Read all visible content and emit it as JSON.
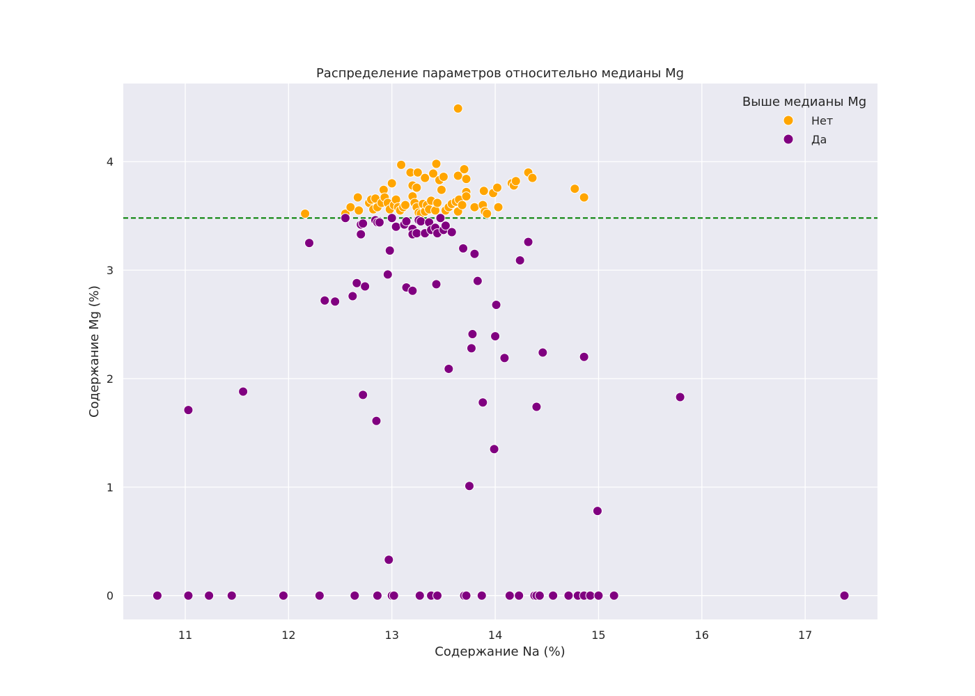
{
  "chart_data": {
    "type": "scatter",
    "title": "Распределение параметров относительно медианы Mg",
    "xlabel": "Содержание Na (%)",
    "ylabel": "Содержание Mg (%)",
    "xlim": [
      10.4,
      17.7
    ],
    "ylim": [
      -0.22,
      4.72
    ],
    "xticks": [
      11,
      12,
      13,
      14,
      15,
      16,
      17
    ],
    "yticks": [
      0,
      1,
      2,
      3,
      4
    ],
    "grid": true,
    "median_line": {
      "y": 3.48,
      "color": "#008000",
      "style": "dashed"
    },
    "legend": {
      "title": "Выше медианы Mg",
      "placement": "top-right",
      "entries": [
        {
          "label": "Нет",
          "color": "#FFA500"
        },
        {
          "label": "Да",
          "color": "#800080"
        }
      ]
    },
    "series": [
      {
        "name": "Нет",
        "color": "#FFA500",
        "points": [
          [
            12.16,
            3.52
          ],
          [
            12.55,
            3.52
          ],
          [
            12.6,
            3.58
          ],
          [
            12.67,
            3.67
          ],
          [
            12.68,
            3.55
          ],
          [
            12.78,
            3.62
          ],
          [
            12.8,
            3.65
          ],
          [
            12.82,
            3.56
          ],
          [
            12.84,
            3.66
          ],
          [
            12.86,
            3.58
          ],
          [
            12.9,
            3.62
          ],
          [
            12.92,
            3.74
          ],
          [
            12.93,
            3.67
          ],
          [
            12.96,
            3.62
          ],
          [
            12.98,
            3.56
          ],
          [
            13.0,
            3.8
          ],
          [
            13.02,
            3.6
          ],
          [
            13.04,
            3.65
          ],
          [
            13.06,
            3.58
          ],
          [
            13.08,
            3.55
          ],
          [
            13.09,
            3.97
          ],
          [
            13.11,
            3.58
          ],
          [
            13.13,
            3.6
          ],
          [
            13.18,
            3.9
          ],
          [
            13.2,
            3.78
          ],
          [
            13.2,
            3.68
          ],
          [
            13.22,
            3.62
          ],
          [
            13.24,
            3.58
          ],
          [
            13.25,
            3.9
          ],
          [
            13.24,
            3.76
          ],
          [
            13.26,
            3.53
          ],
          [
            13.28,
            3.52
          ],
          [
            13.3,
            3.61
          ],
          [
            13.32,
            3.85
          ],
          [
            13.32,
            3.54
          ],
          [
            13.34,
            3.6
          ],
          [
            13.36,
            3.56
          ],
          [
            13.38,
            3.64
          ],
          [
            13.4,
            3.89
          ],
          [
            13.42,
            3.55
          ],
          [
            13.43,
            3.98
          ],
          [
            13.44,
            3.62
          ],
          [
            13.46,
            3.83
          ],
          [
            13.48,
            3.74
          ],
          [
            13.5,
            3.86
          ],
          [
            13.52,
            3.55
          ],
          [
            13.55,
            3.58
          ],
          [
            13.58,
            3.61
          ],
          [
            13.62,
            3.63
          ],
          [
            13.64,
            3.54
          ],
          [
            13.65,
            3.65
          ],
          [
            13.64,
            3.87
          ],
          [
            13.64,
            4.49
          ],
          [
            13.68,
            3.6
          ],
          [
            13.7,
            3.93
          ],
          [
            13.72,
            3.84
          ],
          [
            13.72,
            3.72
          ],
          [
            13.72,
            3.68
          ],
          [
            13.8,
            3.58
          ],
          [
            13.88,
            3.6
          ],
          [
            13.89,
            3.73
          ],
          [
            13.9,
            3.54
          ],
          [
            13.92,
            3.52
          ],
          [
            13.98,
            3.71
          ],
          [
            14.02,
            3.76
          ],
          [
            14.03,
            3.58
          ],
          [
            14.16,
            3.8
          ],
          [
            14.18,
            3.78
          ],
          [
            14.2,
            3.82
          ],
          [
            14.32,
            3.9
          ],
          [
            14.36,
            3.85
          ],
          [
            14.77,
            3.75
          ],
          [
            14.86,
            3.67
          ]
        ]
      },
      {
        "name": "Да",
        "color": "#800080",
        "points": [
          [
            12.55,
            3.48
          ],
          [
            12.7,
            3.42
          ],
          [
            12.7,
            3.33
          ],
          [
            12.72,
            3.43
          ],
          [
            12.84,
            3.46
          ],
          [
            12.86,
            3.44
          ],
          [
            12.88,
            3.44
          ],
          [
            13.0,
            3.48
          ],
          [
            13.04,
            3.4
          ],
          [
            13.12,
            3.42
          ],
          [
            13.14,
            3.45
          ],
          [
            13.2,
            3.38
          ],
          [
            13.2,
            3.33
          ],
          [
            13.24,
            3.34
          ],
          [
            13.26,
            3.46
          ],
          [
            13.28,
            3.45
          ],
          [
            13.32,
            3.34
          ],
          [
            13.36,
            3.44
          ],
          [
            13.38,
            3.37
          ],
          [
            13.42,
            3.39
          ],
          [
            13.44,
            3.34
          ],
          [
            13.47,
            3.48
          ],
          [
            13.5,
            3.37
          ],
          [
            13.52,
            3.41
          ],
          [
            13.58,
            3.35
          ],
          [
            12.2,
            3.25
          ],
          [
            12.98,
            3.18
          ],
          [
            13.69,
            3.2
          ],
          [
            13.8,
            3.15
          ],
          [
            14.24,
            3.09
          ],
          [
            14.32,
            3.26
          ],
          [
            12.96,
            2.96
          ],
          [
            12.66,
            2.88
          ],
          [
            12.74,
            2.85
          ],
          [
            13.14,
            2.84
          ],
          [
            13.2,
            2.81
          ],
          [
            13.43,
            2.87
          ],
          [
            13.83,
            2.9
          ],
          [
            12.35,
            2.72
          ],
          [
            12.45,
            2.71
          ],
          [
            12.62,
            2.76
          ],
          [
            14.01,
            2.68
          ],
          [
            13.78,
            2.41
          ],
          [
            14.0,
            2.39
          ],
          [
            13.77,
            2.28
          ],
          [
            14.46,
            2.24
          ],
          [
            14.09,
            2.19
          ],
          [
            14.86,
            2.2
          ],
          [
            13.55,
            2.09
          ],
          [
            11.56,
            1.88
          ],
          [
            11.03,
            1.71
          ],
          [
            12.72,
            1.85
          ],
          [
            13.88,
            1.78
          ],
          [
            14.4,
            1.74
          ],
          [
            15.79,
            1.83
          ],
          [
            12.85,
            1.61
          ],
          [
            13.99,
            1.35
          ],
          [
            13.75,
            1.01
          ],
          [
            14.99,
            0.78
          ],
          [
            12.97,
            0.33
          ],
          [
            10.73,
            0
          ],
          [
            11.03,
            0
          ],
          [
            11.23,
            0
          ],
          [
            11.45,
            0
          ],
          [
            11.95,
            0
          ],
          [
            12.3,
            0
          ],
          [
            12.64,
            0
          ],
          [
            12.86,
            0
          ],
          [
            13.0,
            0
          ],
          [
            13.02,
            0
          ],
          [
            13.27,
            0
          ],
          [
            13.38,
            0
          ],
          [
            13.44,
            0
          ],
          [
            13.7,
            0
          ],
          [
            13.72,
            0
          ],
          [
            13.87,
            0
          ],
          [
            14.14,
            0
          ],
          [
            14.23,
            0
          ],
          [
            14.38,
            0
          ],
          [
            14.4,
            0
          ],
          [
            14.43,
            0
          ],
          [
            14.56,
            0
          ],
          [
            14.71,
            0
          ],
          [
            14.8,
            0
          ],
          [
            14.86,
            0
          ],
          [
            14.92,
            0
          ],
          [
            15.0,
            0
          ],
          [
            15.15,
            0
          ],
          [
            17.38,
            0
          ]
        ]
      }
    ]
  }
}
